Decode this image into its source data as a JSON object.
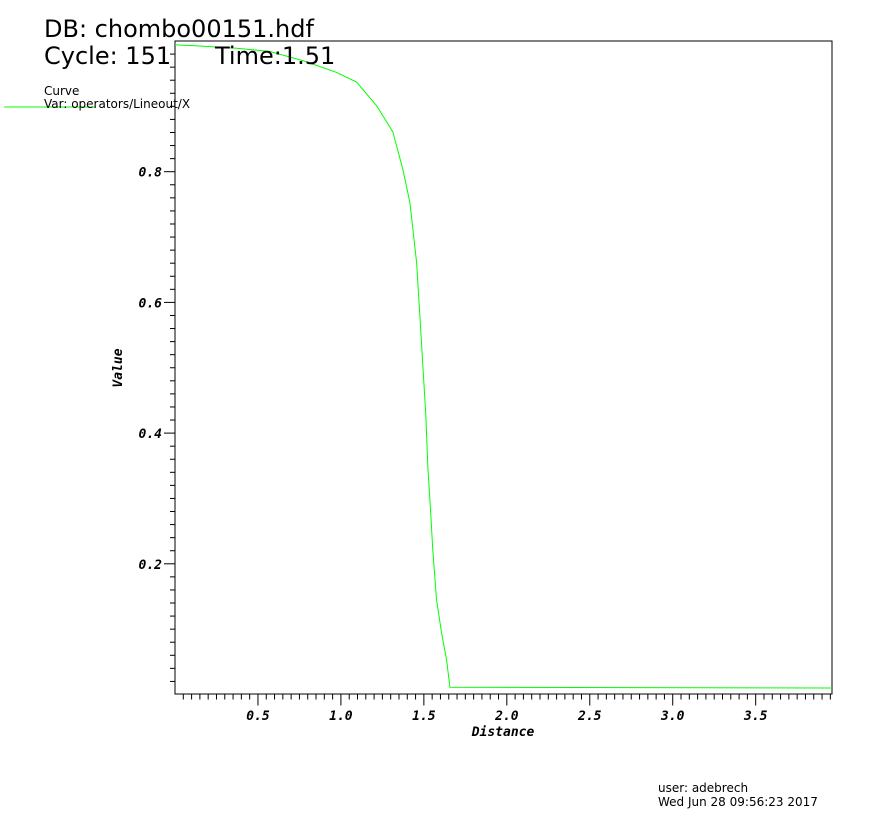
{
  "header": {
    "db": "DB: chombo00151.hdf",
    "cycle": "Cycle: 151",
    "time": "Time:1.51"
  },
  "legend": {
    "title": "Curve",
    "var": "Var: operators/Lineout/X"
  },
  "footer": {
    "user": "user: adebrech",
    "date": "Wed Jun 28 09:56:23 2017"
  },
  "colors": {
    "curve": "#00ff00",
    "axes": "#000000",
    "background": "#ffffff"
  },
  "chart_data": {
    "type": "line",
    "xlabel": "Distance",
    "ylabel": "Value",
    "xlim": [
      0,
      3.96
    ],
    "ylim": [
      0,
      1.0
    ],
    "grid": false,
    "legend_position": "top-left",
    "x_ticks": [
      "0.5",
      "1.0",
      "1.5",
      "2.0",
      "2.5",
      "3.0",
      "3.5"
    ],
    "y_ticks": [
      "0.2",
      "0.4",
      "0.6",
      "0.8"
    ],
    "series": [
      {
        "x": [
          0.0,
          0.108,
          0.372,
          0.572,
          0.771,
          0.974,
          1.095,
          1.215,
          1.313,
          1.373,
          1.416,
          1.456,
          1.476,
          1.494,
          1.512,
          1.524,
          1.54,
          1.554,
          1.576,
          1.607,
          1.637,
          1.657,
          3.96
        ],
        "y": [
          0.994,
          0.993,
          0.989,
          0.984,
          0.97,
          0.952,
          0.937,
          0.901,
          0.861,
          0.804,
          0.753,
          0.661,
          0.579,
          0.502,
          0.425,
          0.349,
          0.283,
          0.221,
          0.145,
          0.094,
          0.053,
          0.011,
          0.01
        ]
      }
    ]
  }
}
